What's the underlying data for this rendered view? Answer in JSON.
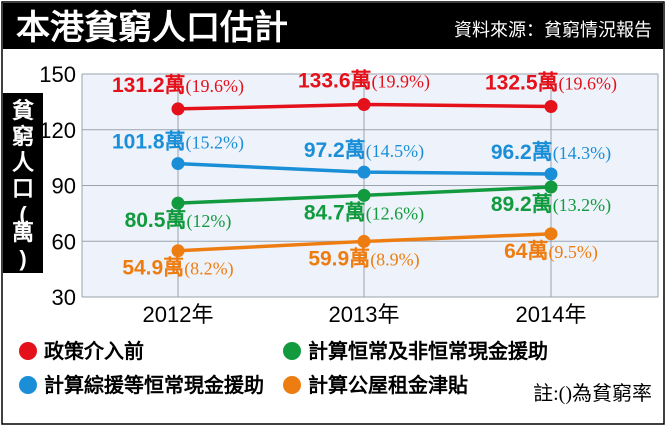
{
  "header": {
    "title": "本港貧窮人口估計",
    "source": "資料來源：貧窮情況報告"
  },
  "note": "註:()為貧窮率",
  "colors": {
    "background": "#ffffff",
    "header_bg": "#000000",
    "plot_bg": "#eef3fb",
    "series_red": "#e4101a",
    "series_blue": "#1a8fd8",
    "series_green": "#129a3e",
    "series_orange": "#ee7d11"
  },
  "chart_data": {
    "type": "line",
    "title": "本港貧窮人口估計",
    "ylabel": "貧窮人口(萬)",
    "xlabel": "",
    "categories": [
      "2012年",
      "2013年",
      "2014年"
    ],
    "ylim": [
      30,
      150
    ],
    "yticks": [
      30,
      60,
      90,
      120,
      150
    ],
    "grid": true,
    "legend_position": "bottom",
    "series": [
      {
        "name": "政策介入前",
        "color": "#e4101a",
        "values": [
          131.2,
          133.6,
          132.5
        ],
        "labels": [
          "131.2萬",
          "133.6萬",
          "132.5萬"
        ],
        "rates": [
          "(19.6%)",
          "(19.9%)",
          "(19.6%)"
        ]
      },
      {
        "name": "計算綜援等恒常現金援助",
        "color": "#1a8fd8",
        "values": [
          101.8,
          97.2,
          96.2
        ],
        "labels": [
          "101.8萬",
          "97.2萬",
          "96.2萬"
        ],
        "rates": [
          "(15.2%)",
          "(14.5%)",
          "(14.3%)"
        ]
      },
      {
        "name": "計算恒常及非恒常現金援助",
        "color": "#129a3e",
        "values": [
          80.5,
          84.7,
          89.2
        ],
        "labels": [
          "80.5萬",
          "84.7萬",
          "89.2萬"
        ],
        "rates": [
          "(12%)",
          "(12.6%)",
          "(13.2%)"
        ]
      },
      {
        "name": "計算公屋租金津貼",
        "color": "#ee7d11",
        "values": [
          54.9,
          59.9,
          64
        ],
        "labels": [
          "54.9萬",
          "59.9萬",
          "64萬"
        ],
        "rates": [
          "(8.2%)",
          "(8.9%)",
          "(9.5%)"
        ]
      }
    ],
    "legend_order": [
      0,
      2,
      1,
      3
    ]
  }
}
